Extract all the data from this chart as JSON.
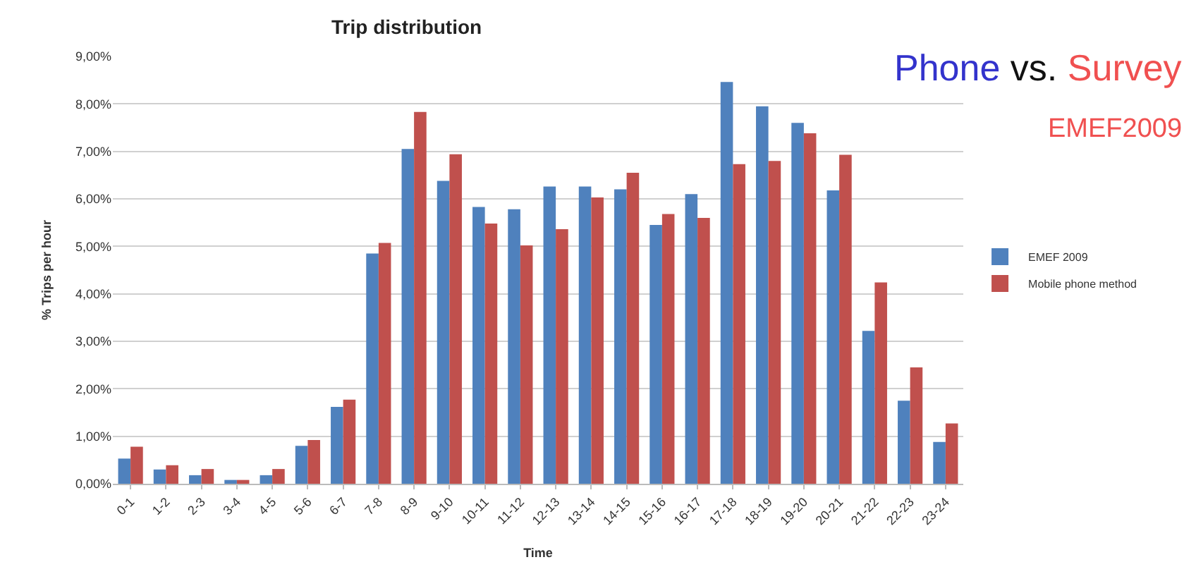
{
  "chart_data": {
    "type": "bar",
    "title": "Trip distribution",
    "xlabel": "Time",
    "ylabel": "% Trips per hour",
    "categories": [
      "0-1",
      "1-2",
      "2-3",
      "3-4",
      "4-5",
      "5-6",
      "6-7",
      "7-8",
      "8-9",
      "9-10",
      "10-11",
      "11-12",
      "12-13",
      "13-14",
      "14-15",
      "15-16",
      "16-17",
      "17-18",
      "18-19",
      "19-20",
      "20-21",
      "21-22",
      "22-23",
      "23-24"
    ],
    "series": [
      {
        "name": "EMEF 2009",
        "color": "#4f81bd",
        "values": [
          0.53,
          0.3,
          0.18,
          0.08,
          0.18,
          0.8,
          1.62,
          4.85,
          7.05,
          6.38,
          5.83,
          5.78,
          6.26,
          6.26,
          6.2,
          5.45,
          6.1,
          8.46,
          7.95,
          7.6,
          6.18,
          3.22,
          1.75,
          0.88
        ]
      },
      {
        "name": "Mobile phone method",
        "color": "#c0504d",
        "values": [
          0.78,
          0.39,
          0.31,
          0.08,
          0.31,
          0.92,
          1.77,
          5.07,
          7.83,
          6.94,
          5.48,
          5.02,
          5.36,
          6.03,
          6.55,
          5.68,
          5.6,
          6.73,
          6.8,
          7.38,
          6.93,
          4.24,
          2.45,
          1.27
        ]
      }
    ],
    "ylim": [
      0,
      9
    ],
    "yticks": [
      {
        "value": 0,
        "label": "0,00%"
      },
      {
        "value": 1,
        "label": "1,00%"
      },
      {
        "value": 2,
        "label": "2,00%"
      },
      {
        "value": 3,
        "label": "3,00%"
      },
      {
        "value": 4,
        "label": "4,00%"
      },
      {
        "value": 5,
        "label": "5,00%"
      },
      {
        "value": 6,
        "label": "6,00%"
      },
      {
        "value": 7,
        "label": "7,00%"
      },
      {
        "value": 8,
        "label": "8,00%"
      },
      {
        "value": 9,
        "label": "9,00%"
      }
    ],
    "grid": "y",
    "legend": "right",
    "annotations": [
      "Phone",
      "vs.",
      "Survey",
      "EMEF2009"
    ]
  }
}
